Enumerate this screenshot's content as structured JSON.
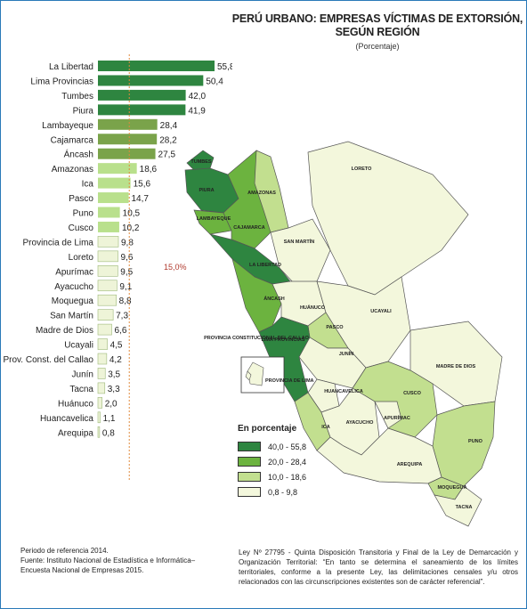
{
  "title_line1": "PERÚ URBANO: EMPRESAS VÍCTIMAS DE EXTORSIÓN,",
  "title_line2": "SEGÚN REGIÓN",
  "subtitle": "(Porcentaje)",
  "reference_label": "15,0%",
  "chart_data": {
    "type": "bar",
    "orientation": "horizontal",
    "categories": [
      "La Libertad",
      "Lima Provincias",
      "Tumbes",
      "Piura",
      "Lambayeque",
      "Cajamarca",
      "Áncash",
      "Amazonas",
      "Ica",
      "Pasco",
      "Puno",
      "Cusco",
      "Provincia de Lima",
      "Loreto",
      "Apurímac",
      "Ayacucho",
      "Moquegua",
      "San Martín",
      "Madre de Dios",
      "Ucayali",
      "Prov. Const. del Callao",
      "Junín",
      "Tacna",
      "Huánuco",
      "Huancavelica",
      "Arequipa"
    ],
    "values": [
      55.8,
      50.4,
      42.0,
      41.9,
      28.4,
      28.2,
      27.5,
      18.6,
      15.6,
      14.7,
      10.5,
      10.2,
      9.8,
      9.6,
      9.5,
      9.1,
      8.8,
      7.3,
      6.6,
      4.5,
      4.2,
      3.5,
      3.3,
      2.0,
      1.1,
      0.8
    ],
    "value_labels": [
      "55,8",
      "50,4",
      "42,0",
      "41,9",
      "28,4",
      "28,2",
      "27,5",
      "18,6",
      "15,6",
      "14,7",
      "10,5",
      "10,2",
      "9,8",
      "9,6",
      "9,5",
      "9,1",
      "8,8",
      "7,3",
      "6,6",
      "4,5",
      "4,2",
      "3,5",
      "3,3",
      "2,0",
      "1,1",
      "0,8"
    ],
    "reference_line": 15.0,
    "xlim": [
      0,
      60
    ],
    "grid": false
  },
  "legend": {
    "title": "En porcentaje",
    "items": [
      {
        "label": "40,0 - 55,8",
        "color": "#2e8540"
      },
      {
        "label": "20,0 - 28,4",
        "color": "#6cb33f"
      },
      {
        "label": "10,0 - 18,6",
        "color": "#c2df8f"
      },
      {
        "label": "0,8 - 9,8",
        "color": "#f3f7dc"
      }
    ]
  },
  "map": {
    "labels": [
      "TUMBES",
      "PIURA",
      "AMAZONAS",
      "LORETO",
      "LAMBAYEQUE",
      "CAJAMARCA",
      "SAN MARTÍN",
      "LA LIBERTAD",
      "ÁNCASH",
      "HUÁNUCO",
      "UCAYALI",
      "PASCO",
      "LIMA PROVINCIAS",
      "JUNÍN",
      "MADRE DE DIOS",
      "HUANCAVELICA",
      "CUSCO",
      "ICA",
      "AYACUCHO",
      "APURÍMAC",
      "PUNO",
      "AREQUIPA",
      "MOQUEGUA",
      "TACNA"
    ],
    "inset_label_1": "PROVINCIA CONSTITUCIONAL DEL CALLAO",
    "inset_label_2": "PROVINCIA DE LIMA"
  },
  "footer": {
    "period": "Periodo de referencia 2014.",
    "source_1": "Fuente: Instituto Nacional de Estadística e Informática–",
    "source_2": "Encuesta Nacional de Empresas 2015.",
    "law_note": "Ley Nº 27795 - Quinta Disposición Transitoria y Final de la Ley de Demarcación y Organización Territorial: “En tanto se determina el saneamiento de los límites territoriales, conforme a la presente Ley, las delimitaciones censales y/u otros relacionados con las circunscripciones existentes son de carácter referencial”."
  }
}
